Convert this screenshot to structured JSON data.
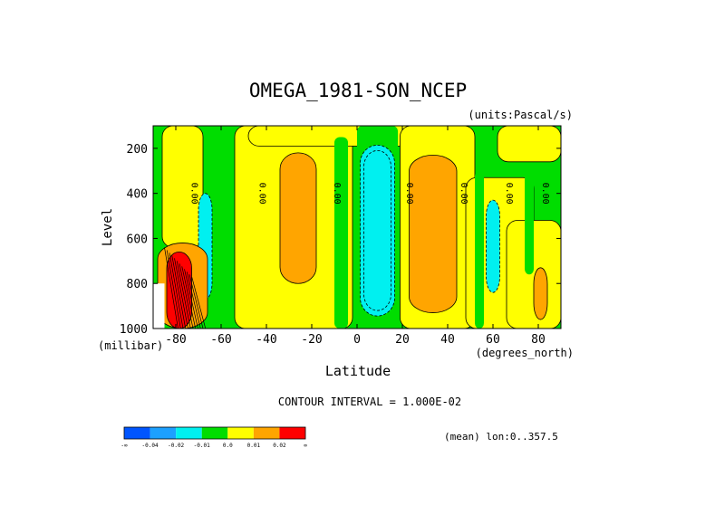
{
  "chart_data": {
    "type": "heatmap",
    "title": "OMEGA_1981-SON_NCEP",
    "units": "(units:Pascal/s)",
    "xlabel": "Latitude",
    "ylabel": "Level",
    "x_unit_label": "(degrees_north)",
    "y_unit_label": "(millibar)",
    "xlim": [
      -90,
      90
    ],
    "ylim": [
      1000,
      100
    ],
    "x_ticks": [
      -80,
      -60,
      -40,
      -20,
      0,
      20,
      40,
      60,
      80
    ],
    "y_ticks": [
      200,
      400,
      600,
      800,
      1000
    ],
    "contour_interval_text": "CONTOUR INTERVAL = 1.000E-02",
    "mean_text": "(mean) lon:0..357.5",
    "contour_label": "0.00",
    "contour_label_lats": [
      -73,
      -43,
      -10,
      22,
      46,
      66,
      82
    ],
    "colorbar": {
      "colors": [
        "#0055ff",
        "#1ca0ff",
        "#00f0f0",
        "#00dd00",
        "#ffff00",
        "#ffa500",
        "#ff0000"
      ],
      "tick_labels": [
        "-∞",
        "-0.04",
        "-0.02",
        "-0.01",
        "0.0",
        "0.01",
        "0.02",
        "∞"
      ]
    },
    "regions": [
      {
        "name": "trop-subsidence-s",
        "class": 5,
        "lat_min": -34,
        "lat_max": -18,
        "p_min": 220,
        "p_max": 800
      },
      {
        "name": "trop-ascent-eq",
        "class": 2,
        "lat_min": 3,
        "lat_max": 15,
        "p_min": 210,
        "p_max": 920
      },
      {
        "name": "trop-subsidence-n",
        "class": 5,
        "lat_min": 23,
        "lat_max": 44,
        "p_min": 230,
        "p_max": 930
      },
      {
        "name": "sub-ascent-s",
        "class": 2,
        "lat_min": -70,
        "lat_max": -64,
        "p_min": 400,
        "p_max": 870
      },
      {
        "name": "sub-ascent-n",
        "class": 2,
        "lat_min": 57,
        "lat_max": 63,
        "p_min": 430,
        "p_max": 840
      },
      {
        "name": "polar-orange-n",
        "class": 5,
        "lat_min": 78,
        "lat_max": 84,
        "p_min": 730,
        "p_max": 960
      },
      {
        "name": "antarctic-orange",
        "class": 5,
        "lat_min": -88,
        "lat_max": -66,
        "p_min": 620,
        "p_max": 1000
      },
      {
        "name": "antarctic-red",
        "class": 6,
        "lat_min": -84,
        "lat_max": -73,
        "p_min": 660,
        "p_max": 1000
      }
    ]
  }
}
